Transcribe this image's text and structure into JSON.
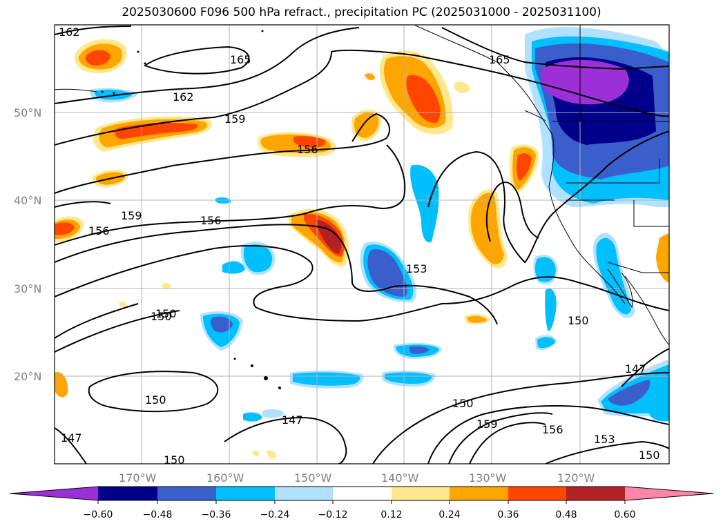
{
  "title": "2025030600 F096 500 hPa refract., precipitation PC (2025031000 - 2025031100)",
  "lat_labels": [
    "50°N",
    "40°N",
    "30°N",
    "20°N"
  ],
  "lon_labels": [
    "170°W",
    "160°W",
    "150°W",
    "140°W",
    "130°W",
    "120°W"
  ],
  "contour_labels": [
    "162",
    "165",
    "162",
    "159",
    "156",
    "165",
    "159",
    "156",
    "156",
    "153",
    "150",
    "150",
    "150",
    "147",
    "150",
    "147",
    "150",
    "159",
    "156",
    "153",
    "150",
    "147",
    "150"
  ],
  "colorbar": {
    "tick_labels": [
      "−0.60",
      "−0.48",
      "−0.36",
      "−0.24",
      "−0.12",
      "0.12",
      "0.24",
      "0.36",
      "0.48",
      "0.60"
    ],
    "colors": [
      "#9b30d9",
      "#00008b",
      "#3a5fcd",
      "#00bfff",
      "#b0e2ff",
      "#ffffff",
      "#ffe88c",
      "#ffa500",
      "#ff4500",
      "#b22222",
      "#ff85a8"
    ]
  },
  "colors": {
    "purple": "#9b30d9",
    "dark_blue": "#00008b",
    "mid_blue": "#3a5fcd",
    "deep_sky": "#00bfff",
    "light_blue": "#b0e2ff",
    "yellow": "#ffe88c",
    "orange": "#ffa500",
    "orange_red": "#ff4500",
    "firebrick": "#b22222"
  }
}
